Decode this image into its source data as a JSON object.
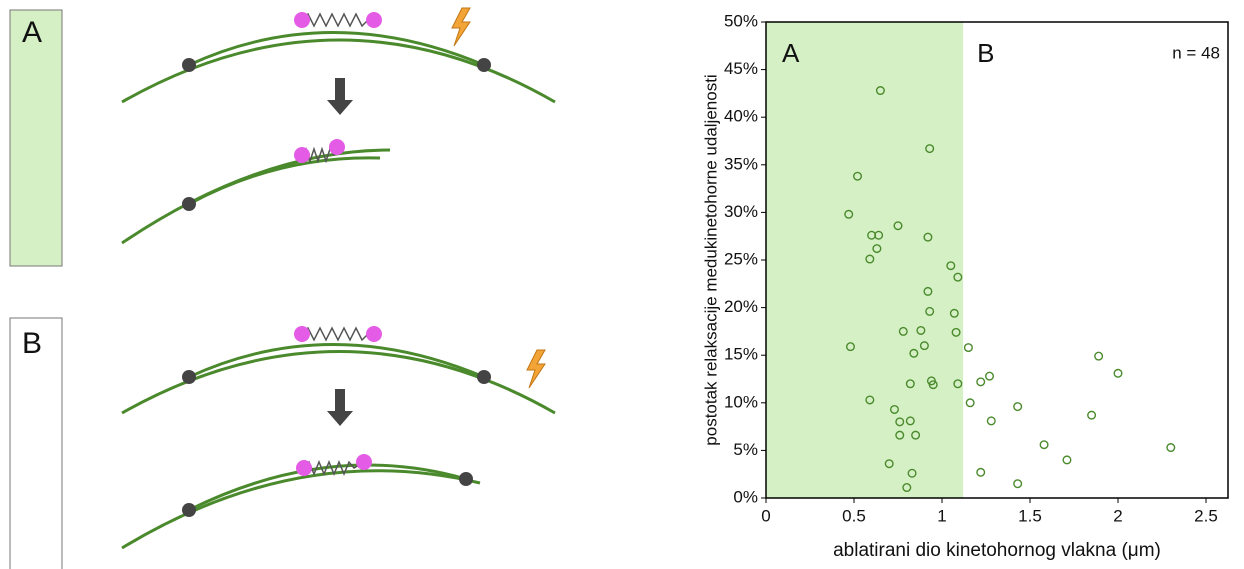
{
  "diagram": {
    "panels": [
      {
        "label": "A"
      },
      {
        "label": "B"
      }
    ]
  },
  "chart_data": {
    "type": "scatter",
    "xlabel": "ablatirani dio kinetohornog vlakna (μm)",
    "ylabel": "postotak relaksacije medukinetohorne udaljenosti",
    "annotation": "n = 48",
    "region_labels": [
      "A",
      "B"
    ],
    "shaded_xlim": [
      0,
      1.12
    ],
    "shade_color": "#d5f0c5",
    "xlim": [
      0,
      2.625
    ],
    "xticks": [
      0,
      0.5,
      1,
      1.5,
      2,
      2.5
    ],
    "ylim": [
      0,
      50
    ],
    "yticks": [
      {
        "value": 0,
        "label": "0%"
      },
      {
        "value": 5,
        "label": "5%"
      },
      {
        "value": 10,
        "label": "10%"
      },
      {
        "value": 15,
        "label": "15%"
      },
      {
        "value": 20,
        "label": "20%"
      },
      {
        "value": 25,
        "label": "25%"
      },
      {
        "value": 30,
        "label": "30%"
      },
      {
        "value": 35,
        "label": "35%"
      },
      {
        "value": 40,
        "label": "40%"
      },
      {
        "value": 45,
        "label": "45%"
      },
      {
        "value": 50,
        "label": "50%"
      }
    ],
    "color": "#4a8a2c",
    "x": [
      0.65,
      0.93,
      0.52,
      0.47,
      0.75,
      0.6,
      0.64,
      0.92,
      0.63,
      0.59,
      1.05,
      1.09,
      0.92,
      0.93,
      1.07,
      0.78,
      1.08,
      0.48,
      1.15,
      0.9,
      0.84,
      1.89,
      2.0,
      1.27,
      1.22,
      0.94,
      0.95,
      0.82,
      1.09,
      1.16,
      0.59,
      1.43,
      0.73,
      1.85,
      1.28,
      0.82,
      0.76,
      0.76,
      0.85,
      1.58,
      2.3,
      1.71,
      0.7,
      1.22,
      0.83,
      1.43,
      0.8,
      0.88
    ],
    "values": [
      42.8,
      36.7,
      33.8,
      29.8,
      28.6,
      27.6,
      27.6,
      27.4,
      26.2,
      25.1,
      24.4,
      23.2,
      21.7,
      19.6,
      19.4,
      17.5,
      17.4,
      15.9,
      15.8,
      16.0,
      15.2,
      14.9,
      13.1,
      12.8,
      12.2,
      12.3,
      11.9,
      12.0,
      12.0,
      10.0,
      10.3,
      9.6,
      9.3,
      8.7,
      8.1,
      8.1,
      8.0,
      6.6,
      6.6,
      5.6,
      5.3,
      4.0,
      3.6,
      2.7,
      2.6,
      1.5,
      1.1,
      17.6
    ]
  }
}
